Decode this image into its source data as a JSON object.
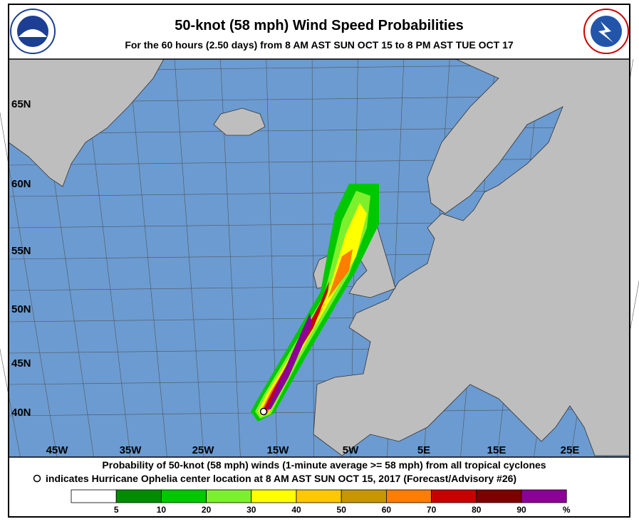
{
  "header": {
    "title": "50-knot (58 mph) Wind Speed Probabilities",
    "subtitle": "For the  60 hours (2.50 days) from 8 AM AST SUN OCT 15 to 8 PM AST TUE OCT 17"
  },
  "map": {
    "lat_labels": [
      "65N",
      "60N",
      "55N",
      "50N",
      "45N",
      "40N"
    ],
    "lon_labels": [
      "45W",
      "35W",
      "25W",
      "15W",
      "5W",
      "5E",
      "15E",
      "25E"
    ]
  },
  "footer": {
    "line1": "Probability of 50-knot (58 mph) winds (1-minute average >= 58 mph) from all tropical cyclones",
    "line2": "indicates Hurricane Ophelia center location at 8 AM AST SUN OCT 15, 2017 (Forecast/Advisory #26)"
  },
  "legend": {
    "colors": [
      "#ffffff",
      "#008c00",
      "#00c800",
      "#7df02d",
      "#ffff00",
      "#ffc800",
      "#c89600",
      "#ff7d00",
      "#c80000",
      "#7d0000",
      "#8c0096"
    ],
    "labels": [
      "5",
      "10",
      "20",
      "30",
      "40",
      "50",
      "60",
      "70",
      "80",
      "90",
      "%"
    ]
  }
}
